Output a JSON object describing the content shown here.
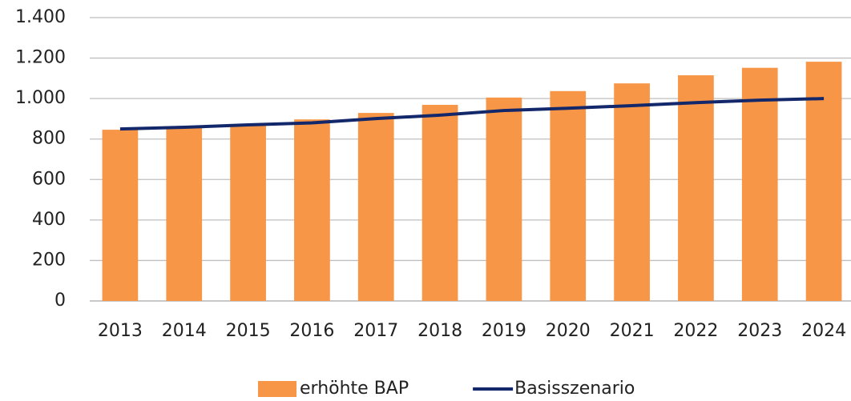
{
  "chart_data": {
    "type": "bar",
    "categories": [
      "2013",
      "2014",
      "2015",
      "2016",
      "2017",
      "2018",
      "2019",
      "2020",
      "2021",
      "2022",
      "2023",
      "2024"
    ],
    "series": [
      {
        "name": "erhöhte BAP",
        "type": "bar",
        "color": "#f79646",
        "values": [
          846,
          858,
          872,
          897,
          929,
          969,
          1005,
          1037,
          1075,
          1115,
          1152,
          1182
        ]
      },
      {
        "name": "Basisszenario",
        "type": "line",
        "color": "#13286b",
        "values": [
          850,
          858,
          870,
          880,
          901,
          918,
          941,
          952,
          965,
          980,
          992,
          1000
        ]
      }
    ],
    "ylim": [
      0,
      1400
    ],
    "yticks": [
      0,
      200,
      400,
      600,
      800,
      {
        "value": 1000,
        "label": "1.000"
      },
      {
        "value": 1200,
        "label": "1.200"
      },
      {
        "value": 1400,
        "label": "1.400"
      }
    ],
    "grid": true,
    "legend": "bottom"
  }
}
